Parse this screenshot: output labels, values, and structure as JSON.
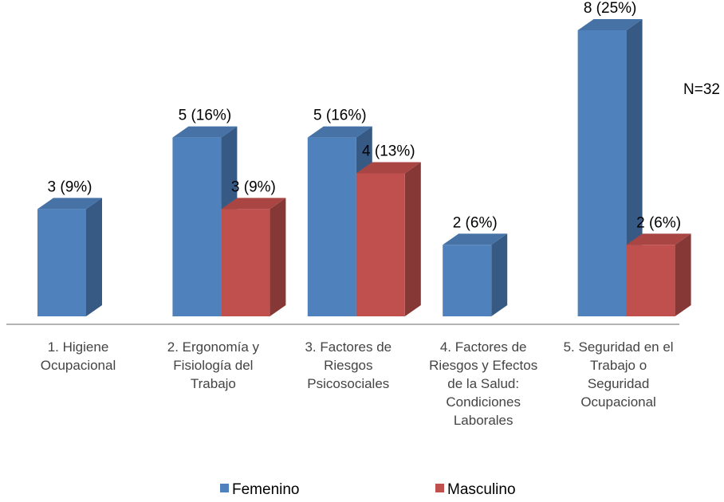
{
  "chart_data": {
    "type": "bar3d",
    "categories": [
      "1. Higiene Ocupacional",
      "2. Ergonomía y Fisiología del Trabajo",
      "3. Factores de Riesgos Psicosociales",
      "4. Factores de Riesgos y Efectos de la Salud: Condiciones Laborales",
      "5. Seguridad en el Trabajo o Seguridad Ocupacional"
    ],
    "series": [
      {
        "name": "Femenino",
        "color": "#4f81bd",
        "values": [
          3,
          5,
          5,
          2,
          8
        ],
        "value_labels": [
          "3 (9%)",
          "5 (16%)",
          "5 (16%)",
          "2 (6%)",
          "8 (25%)"
        ]
      },
      {
        "name": "Masculino",
        "color": "#c0504d",
        "values": [
          null,
          3,
          4,
          null,
          2
        ],
        "value_labels": [
          null,
          "3 (9%)",
          "4 (13%)",
          null,
          "2 (6%)"
        ]
      }
    ],
    "annotation": "N=32",
    "legend": "bottom"
  }
}
